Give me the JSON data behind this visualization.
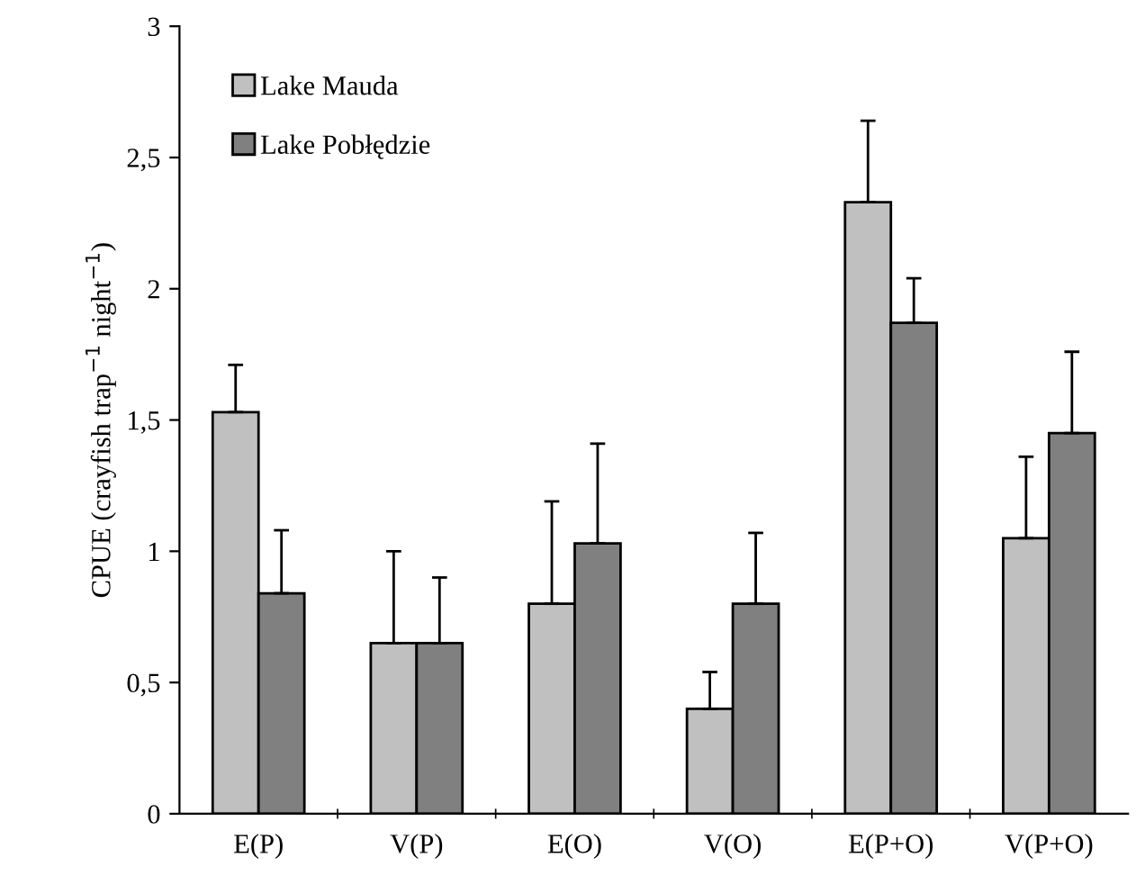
{
  "chart_data": {
    "type": "bar",
    "ylabel": "CPUE (crayfish trap$^{−1}$ night$^{−1}$)",
    "categories": [
      "E(P)",
      "V(P)",
      "E(O)",
      "V(O)",
      "E(P+O)",
      "V(P+O)"
    ],
    "series": [
      {
        "name": "Lake Mauda",
        "color": "#c0c0c0",
        "values": [
          1.53,
          0.65,
          0.8,
          0.4,
          2.33,
          1.05
        ],
        "errors": [
          [
            1.53,
            1.71
          ],
          [
            0.65,
            1.0
          ],
          [
            0.8,
            1.19
          ],
          [
            0.4,
            0.54
          ],
          [
            2.33,
            2.64
          ],
          [
            1.05,
            1.36
          ]
        ]
      },
      {
        "name": "Lake Pobłędzie",
        "color": "#808080",
        "values": [
          0.84,
          0.65,
          1.03,
          0.8,
          1.87,
          1.45
        ],
        "errors": [
          [
            0.84,
            1.08
          ],
          [
            0.65,
            0.9
          ],
          [
            1.03,
            1.41
          ],
          [
            0.8,
            1.07
          ],
          [
            1.87,
            2.04
          ],
          [
            1.45,
            1.76
          ]
        ]
      }
    ],
    "ylim": [
      0,
      3
    ],
    "yticks": [
      0,
      {
        "value": 0.5,
        "label": "0,5"
      },
      1,
      {
        "value": 1.5,
        "label": "1,5"
      },
      2,
      {
        "value": 2.5,
        "label": "2,5"
      },
      3
    ],
    "grid": false,
    "legend": "top left"
  }
}
